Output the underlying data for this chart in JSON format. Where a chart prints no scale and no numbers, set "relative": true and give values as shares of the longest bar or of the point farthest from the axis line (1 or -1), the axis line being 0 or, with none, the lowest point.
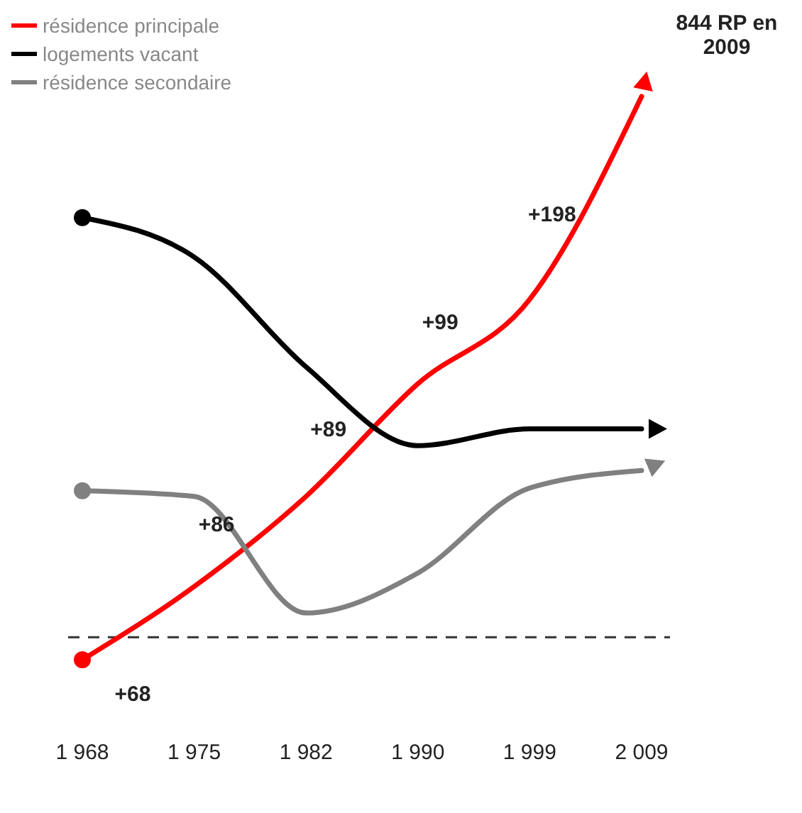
{
  "chart_data": {
    "type": "line",
    "title": "844 RP en 2009",
    "relative": true,
    "categories": [
      "1 968",
      "1 975",
      "1 982",
      "1 990",
      "1 999",
      "2 009"
    ],
    "series": [
      {
        "name": "résidence principale",
        "color": "#ff0000",
        "values": [
          0,
          0.13,
          0.29,
          0.49,
          0.64,
          1
        ]
      },
      {
        "name": "logements vacant",
        "color": "#000000",
        "values": [
          0.785,
          0.715,
          0.52,
          0.38,
          0.41,
          0.41
        ]
      },
      {
        "name": "résidence secondaire",
        "color": "#808080",
        "values": [
          0.3,
          0.29,
          0.083,
          0.154,
          0.305,
          0.336
        ]
      }
    ],
    "annotations": [
      "+68",
      "+86",
      "+89",
      "+99",
      "+198"
    ],
    "ref_lines": [
      {
        "axis": "y",
        "value": 0.04,
        "color": "#333333",
        "line_style": "dashed"
      }
    ],
    "legend": "top left",
    "line_style": "solid"
  }
}
